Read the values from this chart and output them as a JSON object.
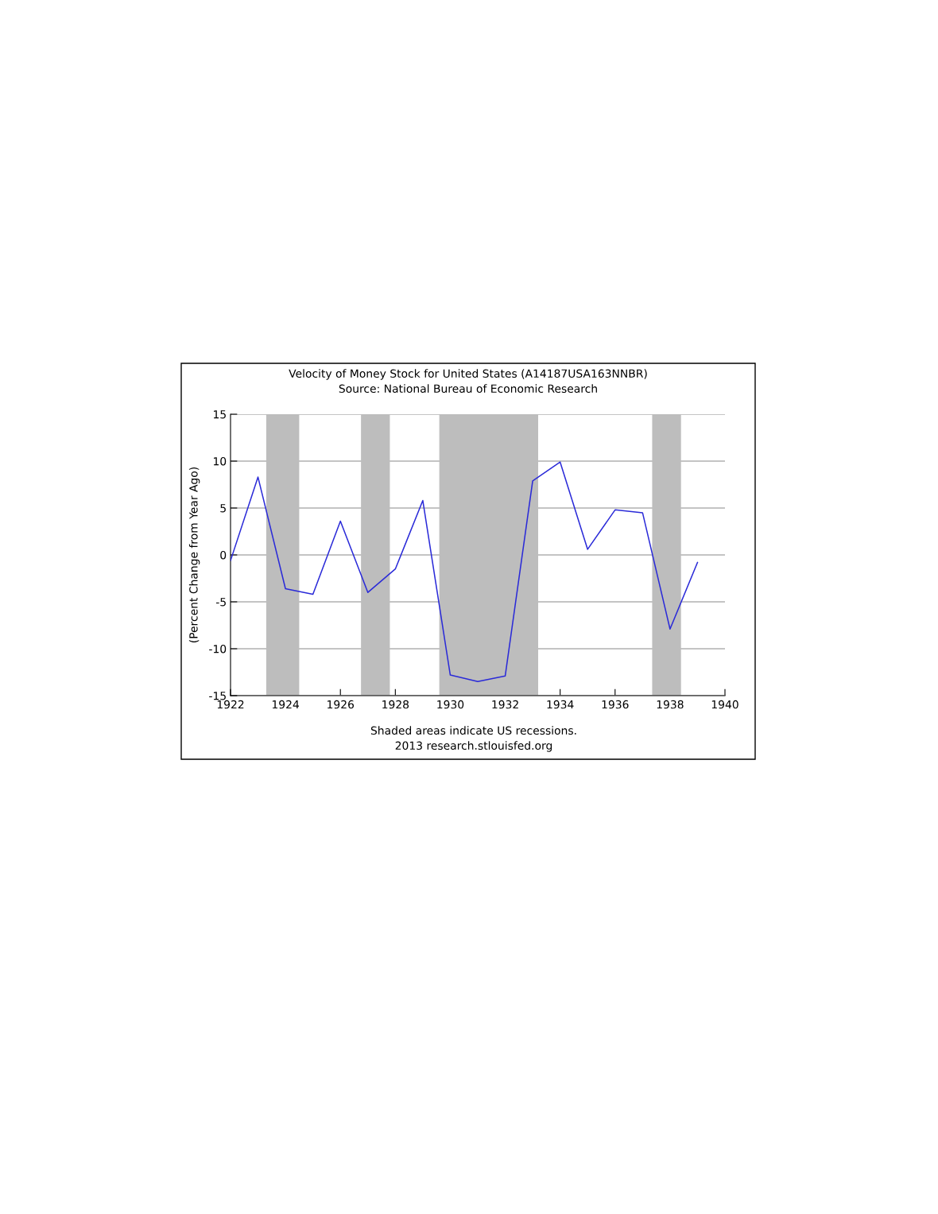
{
  "chart_data": {
    "type": "line",
    "title": "Velocity of Money Stock for United States (A14187USA163NNBR)",
    "subtitle": "Source: National Bureau of Economic Research",
    "ylabel": "(Percent Change from Year Ago)",
    "x": [
      1922,
      1923,
      1924,
      1925,
      1926,
      1927,
      1928,
      1929,
      1930,
      1931,
      1932,
      1933,
      1934,
      1935,
      1936,
      1937,
      1938,
      1939
    ],
    "series": [
      {
        "color": "#2a2ad8",
        "values": [
          -0.6,
          8.3,
          -3.6,
          -4.2,
          3.6,
          -4.0,
          -1.5,
          5.8,
          -12.8,
          -13.5,
          -12.9,
          7.9,
          9.9,
          0.6,
          4.8,
          4.5,
          -7.9,
          -0.8
        ]
      }
    ],
    "xlim": [
      1922,
      1940
    ],
    "xticks": [
      1922,
      1924,
      1926,
      1928,
      1930,
      1932,
      1934,
      1936,
      1938,
      1940
    ],
    "ylim": [
      -15,
      15
    ],
    "yticks": [
      -15,
      -10,
      -5,
      0,
      5,
      10,
      15
    ],
    "grid": "y",
    "legend": false,
    "marker": "none",
    "line_style": "solid",
    "bands": [
      {
        "axis": "x",
        "from": 1923.3,
        "to": 1924.5,
        "color": "#bdbdbd"
      },
      {
        "axis": "x",
        "from": 1926.75,
        "to": 1927.8,
        "color": "#bdbdbd"
      },
      {
        "axis": "x",
        "from": 1929.6,
        "to": 1933.2,
        "color": "#bdbdbd"
      },
      {
        "axis": "x",
        "from": 1937.35,
        "to": 1938.4,
        "color": "#bdbdbd"
      }
    ],
    "annotations": [
      "Shaded areas indicate US recessions.",
      "2013 research.stlouisfed.org"
    ]
  }
}
